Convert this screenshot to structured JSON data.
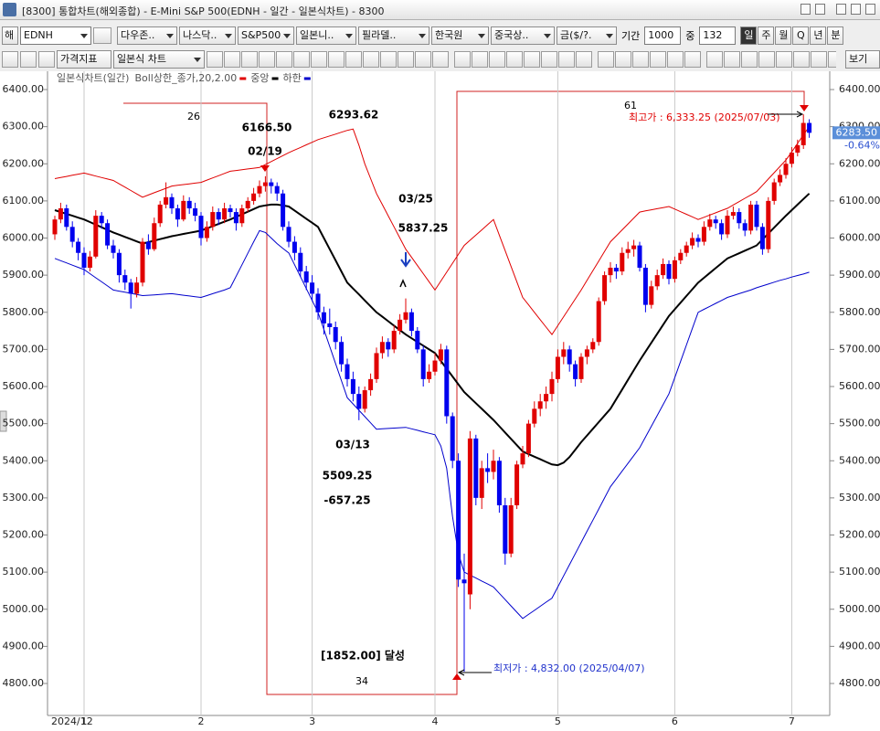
{
  "window": {
    "title": "[8300]  통합차트(해외종합) - E-Mini S&P 500(EDNH - 일간 - 일본식차트) - 8300"
  },
  "toolbar": {
    "code_prefix": "해",
    "code": "EDNH",
    "markets": [
      "다우존..",
      "나스닥..",
      "S&P500",
      "일본니..",
      "필라델..",
      "한국원",
      "중국상..",
      "금($/?."
    ],
    "period_label": "기간",
    "period": "1000",
    "count_label": "중",
    "count": "132",
    "intervals": [
      "일",
      "주",
      "월",
      "Q",
      "년",
      "분"
    ],
    "indicator_button": "가격지표",
    "chart_type": "일본식 차트",
    "view_button": "보기"
  },
  "chart_data": {
    "type": "candlestick",
    "legend_title": "일본식차트(일간)",
    "up_color": "#e00000",
    "down_color": "#0000ee",
    "grid": "x",
    "ylim": [
      4800,
      6400
    ],
    "yticks": [
      {
        "value": 6400,
        "label": "6400.00"
      },
      {
        "value": 6300,
        "label": "6300.00"
      },
      {
        "value": 6200,
        "label": "6200.00"
      },
      {
        "value": 6100,
        "label": "6100.00"
      },
      {
        "value": 6000,
        "label": "6000.00"
      },
      {
        "value": 5900,
        "label": "5900.00"
      },
      {
        "value": 5800,
        "label": "5800.00"
      },
      {
        "value": 5700,
        "label": "5700.00"
      },
      {
        "value": 5600,
        "label": "5600.00"
      },
      {
        "value": 5500,
        "label": "5500.00"
      },
      {
        "value": 5400,
        "label": "5400.00"
      },
      {
        "value": 5300,
        "label": "5300.00"
      },
      {
        "value": 5200,
        "label": "5200.00"
      },
      {
        "value": 5100,
        "label": "5100.00"
      },
      {
        "value": 5000,
        "label": "5000.00"
      },
      {
        "value": 4900,
        "label": "4900.00"
      },
      {
        "value": 4800,
        "label": "4800.00"
      }
    ],
    "categories": [
      "2024/12",
      null,
      null,
      null,
      null,
      "1",
      null,
      null,
      null,
      null,
      null,
      null,
      null,
      null,
      null,
      null,
      null,
      null,
      null,
      null,
      null,
      null,
      null,
      null,
      null,
      "2",
      null,
      null,
      null,
      null,
      null,
      null,
      null,
      null,
      null,
      null,
      null,
      null,
      null,
      null,
      null,
      null,
      null,
      null,
      "3",
      null,
      null,
      null,
      null,
      null,
      null,
      null,
      null,
      null,
      null,
      null,
      null,
      null,
      null,
      null,
      null,
      null,
      null,
      null,
      null,
      "4",
      null,
      null,
      null,
      null,
      null,
      null,
      null,
      null,
      null,
      null,
      null,
      null,
      null,
      null,
      null,
      null,
      null,
      null,
      null,
      null,
      "5",
      null,
      null,
      null,
      null,
      null,
      null,
      null,
      null,
      null,
      null,
      null,
      null,
      null,
      null,
      null,
      null,
      null,
      null,
      null,
      "6",
      null,
      null,
      null,
      null,
      null,
      null,
      null,
      null,
      null,
      null,
      null,
      null,
      null,
      null,
      null,
      null,
      null,
      null,
      null,
      "7",
      null,
      null,
      null
    ],
    "candles": [
      [
        6010,
        6060,
        5995,
        6050
      ],
      [
        6050,
        6095,
        6040,
        6080
      ],
      [
        6080,
        6090,
        6020,
        6030
      ],
      [
        6030,
        6045,
        5975,
        5990
      ],
      [
        5990,
        6000,
        5940,
        5960
      ],
      [
        5960,
        5975,
        5900,
        5920
      ],
      [
        5920,
        5965,
        5910,
        5950
      ],
      [
        5950,
        6075,
        5945,
        6060
      ],
      [
        6060,
        6070,
        6025,
        6040
      ],
      [
        6040,
        6050,
        5970,
        5980
      ],
      [
        5980,
        5995,
        5945,
        5960
      ],
      [
        5960,
        5970,
        5880,
        5900
      ],
      [
        5900,
        5915,
        5860,
        5880
      ],
      [
        5880,
        5890,
        5810,
        5850
      ],
      [
        5850,
        5895,
        5840,
        5880
      ],
      [
        5880,
        6000,
        5870,
        5990
      ],
      [
        5990,
        6010,
        5955,
        5970
      ],
      [
        5970,
        6055,
        5965,
        6040
      ],
      [
        6040,
        6100,
        6030,
        6090
      ],
      [
        6090,
        6150,
        6080,
        6110
      ],
      [
        6110,
        6120,
        6065,
        6080
      ],
      [
        6080,
        6090,
        6030,
        6050
      ],
      [
        6050,
        6115,
        6045,
        6100
      ],
      [
        6100,
        6110,
        6065,
        6080
      ],
      [
        6080,
        6095,
        6045,
        6060
      ],
      [
        6060,
        6070,
        5980,
        6000
      ],
      [
        6000,
        6045,
        5990,
        6030
      ],
      [
        6030,
        6085,
        6020,
        6070
      ],
      [
        6070,
        6080,
        6035,
        6050
      ],
      [
        6050,
        6095,
        6040,
        6080
      ],
      [
        6080,
        6090,
        6055,
        6070
      ],
      [
        6070,
        6080,
        6020,
        6040
      ],
      [
        6040,
        6090,
        6030,
        6080
      ],
      [
        6080,
        6110,
        6070,
        6100
      ],
      [
        6100,
        6135,
        6090,
        6120
      ],
      [
        6120,
        6155,
        6110,
        6140
      ],
      [
        6140,
        6166.5,
        6125,
        6150
      ],
      [
        6150,
        6160,
        6120,
        6140
      ],
      [
        6140,
        6150,
        6100,
        6120
      ],
      [
        6120,
        6130,
        6020,
        6030
      ],
      [
        6030,
        6045,
        5975,
        5990
      ],
      [
        5990,
        6005,
        5940,
        5960
      ],
      [
        5960,
        5975,
        5895,
        5910
      ],
      [
        5910,
        5925,
        5860,
        5880
      ],
      [
        5880,
        5900,
        5830,
        5850
      ],
      [
        5850,
        5865,
        5780,
        5800
      ],
      [
        5800,
        5815,
        5740,
        5770
      ],
      [
        5770,
        5810,
        5740,
        5760
      ],
      [
        5760,
        5775,
        5700,
        5720
      ],
      [
        5720,
        5735,
        5640,
        5660
      ],
      [
        5660,
        5675,
        5600,
        5620
      ],
      [
        5620,
        5640,
        5560,
        5580
      ],
      [
        5580,
        5600,
        5509.25,
        5540
      ],
      [
        5540,
        5600,
        5530,
        5590
      ],
      [
        5590,
        5635,
        5575,
        5620
      ],
      [
        5620,
        5705,
        5610,
        5690
      ],
      [
        5690,
        5735,
        5675,
        5720
      ],
      [
        5720,
        5730,
        5680,
        5700
      ],
      [
        5700,
        5765,
        5690,
        5750
      ],
      [
        5750,
        5795,
        5740,
        5780
      ],
      [
        5780,
        5837.25,
        5770,
        5800
      ],
      [
        5800,
        5810,
        5735,
        5750
      ],
      [
        5750,
        5760,
        5690,
        5700
      ],
      [
        5700,
        5710,
        5600,
        5620
      ],
      [
        5620,
        5660,
        5610,
        5640
      ],
      [
        5640,
        5690,
        5630,
        5670
      ],
      [
        5670,
        5715,
        5660,
        5700
      ],
      [
        5700,
        5710,
        5500,
        5520
      ],
      [
        5520,
        5530,
        5380,
        5400
      ],
      [
        5400,
        5420,
        5060,
        5080
      ],
      [
        5080,
        5150,
        4832,
        5070
      ],
      [
        5040,
        5480,
        5000,
        5460
      ],
      [
        5460,
        5470,
        5280,
        5300
      ],
      [
        5300,
        5400,
        5270,
        5380
      ],
      [
        5380,
        5420,
        5340,
        5370
      ],
      [
        5370,
        5430,
        5350,
        5400
      ],
      [
        5400,
        5410,
        5260,
        5280
      ],
      [
        5280,
        5300,
        5120,
        5150
      ],
      [
        5150,
        5300,
        5140,
        5280
      ],
      [
        5280,
        5400,
        5270,
        5390
      ],
      [
        5390,
        5440,
        5380,
        5420
      ],
      [
        5420,
        5510,
        5410,
        5500
      ],
      [
        5500,
        5560,
        5490,
        5540
      ],
      [
        5540,
        5580,
        5520,
        5560
      ],
      [
        5560,
        5600,
        5540,
        5580
      ],
      [
        5580,
        5640,
        5560,
        5620
      ],
      [
        5620,
        5700,
        5610,
        5680
      ],
      [
        5680,
        5720,
        5660,
        5700
      ],
      [
        5700,
        5710,
        5640,
        5660
      ],
      [
        5660,
        5670,
        5600,
        5620
      ],
      [
        5620,
        5690,
        5610,
        5680
      ],
      [
        5680,
        5710,
        5660,
        5700
      ],
      [
        5700,
        5730,
        5690,
        5720
      ],
      [
        5720,
        5840,
        5710,
        5830
      ],
      [
        5830,
        5910,
        5820,
        5900
      ],
      [
        5900,
        5935,
        5880,
        5920
      ],
      [
        5920,
        5930,
        5890,
        5910
      ],
      [
        5910,
        5975,
        5900,
        5960
      ],
      [
        5960,
        5990,
        5945,
        5970
      ],
      [
        5970,
        5995,
        5950,
        5980
      ],
      [
        5980,
        5990,
        5910,
        5920
      ],
      [
        5920,
        5930,
        5800,
        5820
      ],
      [
        5820,
        5885,
        5810,
        5870
      ],
      [
        5870,
        5915,
        5860,
        5900
      ],
      [
        5900,
        5945,
        5890,
        5930
      ],
      [
        5930,
        5940,
        5875,
        5890
      ],
      [
        5890,
        5950,
        5880,
        5940
      ],
      [
        5940,
        5970,
        5930,
        5960
      ],
      [
        5960,
        5990,
        5950,
        5980
      ],
      [
        5980,
        6015,
        5970,
        6000
      ],
      [
        6000,
        6010,
        5975,
        5990
      ],
      [
        5990,
        6045,
        5980,
        6030
      ],
      [
        6030,
        6065,
        6020,
        6050
      ],
      [
        6050,
        6060,
        6025,
        6040
      ],
      [
        6040,
        6050,
        5995,
        6010
      ],
      [
        6010,
        6075,
        6000,
        6060
      ],
      [
        6060,
        6085,
        6050,
        6070
      ],
      [
        6070,
        6080,
        6025,
        6040
      ],
      [
        6040,
        6050,
        6005,
        6020
      ],
      [
        6020,
        6100,
        6010,
        6090
      ],
      [
        6090,
        6100,
        6020,
        6030
      ],
      [
        6030,
        6040,
        5955,
        5970
      ],
      [
        5970,
        6110,
        5960,
        6100
      ],
      [
        6100,
        6160,
        6090,
        6150
      ],
      [
        6150,
        6185,
        6140,
        6170
      ],
      [
        6170,
        6215,
        6160,
        6200
      ],
      [
        6200,
        6245,
        6190,
        6230
      ],
      [
        6230,
        6265,
        6220,
        6250
      ],
      [
        6250,
        6333.25,
        6240,
        6310
      ],
      [
        6310,
        6320,
        6270,
        6283.5
      ]
    ],
    "series": [
      {
        "name": "Boll상한_종가,20,2.00",
        "color": "#e00000",
        "line_width": 1,
        "values": [
          6160,
          6163,
          6166,
          6169,
          6172,
          6175,
          6171,
          6167,
          6163,
          6159,
          6155,
          6146,
          6137,
          6128,
          6119,
          6110,
          6116,
          6122,
          6128,
          6134,
          6140,
          6142,
          6144,
          6146,
          6148,
          6150,
          6156,
          6162,
          6168,
          6174,
          6180,
          6182,
          6184,
          6186,
          6188,
          6190,
          6198,
          6206,
          6214,
          6222,
          6230,
          6237,
          6244,
          6251,
          6258,
          6265,
          6270,
          6275,
          6280,
          6285,
          6290,
          6293.62,
          6250,
          6200,
          6160,
          6120,
          6090,
          6060,
          6030,
          6000,
          5970,
          5948,
          5926,
          5904,
          5882,
          5860,
          5884,
          5908,
          5932,
          5956,
          5980,
          5994,
          6008,
          6022,
          6036,
          6050,
          6008,
          5966,
          5924,
          5882,
          5840,
          5820,
          5800,
          5780,
          5760,
          5740,
          5764,
          5788,
          5812,
          5836,
          5860,
          5886,
          5912,
          5938,
          5964,
          5990,
          6006,
          6022,
          6038,
          6054,
          6070,
          6073,
          6076,
          6079,
          6082,
          6085,
          6078,
          6071,
          6064,
          6057,
          6050,
          6056,
          6062,
          6068,
          6074,
          6080,
          6089,
          6098,
          6107,
          6116,
          6125,
          6142,
          6159,
          6176,
          6193,
          6210,
          6232,
          6255,
          6278,
          6300
        ]
      },
      {
        "name": "중앙",
        "color": "#000000",
        "line_width": 2,
        "values": [
          6075,
          6070,
          6065,
          6060,
          6055,
          6050,
          6043,
          6036,
          6029,
          6022,
          6015,
          6009,
          6003,
          5997,
          5991,
          5985,
          5989,
          5993,
          5997,
          6001,
          6005,
          6008,
          6011,
          6014,
          6017,
          6020,
          6026,
          6032,
          6038,
          6044,
          6050,
          6057,
          6064,
          6071,
          6078,
          6085,
          6088,
          6090,
          6090,
          6088,
          6085,
          6074,
          6063,
          6052,
          6041,
          6030,
          6000,
          5970,
          5940,
          5910,
          5880,
          5864,
          5848,
          5832,
          5816,
          5800,
          5788,
          5776,
          5764,
          5752,
          5740,
          5730,
          5720,
          5710,
          5700,
          5690,
          5669,
          5648,
          5627,
          5606,
          5585,
          5570,
          5555,
          5540,
          5525,
          5510,
          5493,
          5476,
          5459,
          5442,
          5425,
          5418,
          5411,
          5404,
          5397,
          5390,
          5388,
          5395,
          5410,
          5430,
          5450,
          5468,
          5486,
          5504,
          5522,
          5540,
          5566,
          5592,
          5618,
          5644,
          5670,
          5694,
          5718,
          5742,
          5766,
          5790,
          5808,
          5826,
          5844,
          5862,
          5880,
          5893,
          5906,
          5919,
          5932,
          5945,
          5952,
          5959,
          5966,
          5973,
          5980,
          5996,
          6012,
          6028,
          6044,
          6060,
          6075,
          6090,
          6105,
          6120
        ]
      },
      {
        "name": "하한",
        "color": "#0000cc",
        "line_width": 1,
        "values": [
          5945,
          5939,
          5933,
          5927,
          5921,
          5915,
          5904,
          5893,
          5882,
          5871,
          5860,
          5857,
          5854,
          5851,
          5848,
          5845,
          5846,
          5847,
          5848,
          5849,
          5850,
          5848,
          5846,
          5844,
          5842,
          5840,
          5845,
          5850,
          5855,
          5860,
          5866,
          5897,
          5928,
          5959,
          5990,
          6020,
          6015,
          6000,
          5985,
          5972,
          5960,
          5928,
          5896,
          5864,
          5832,
          5800,
          5754,
          5708,
          5662,
          5616,
          5570,
          5553,
          5536,
          5519,
          5502,
          5485,
          5486,
          5487,
          5488,
          5489,
          5490,
          5486,
          5482,
          5478,
          5474,
          5470,
          5440,
          5380,
          5250,
          5150,
          5100,
          5092,
          5084,
          5076,
          5068,
          5060,
          5043,
          5026,
          5009,
          4992,
          4975,
          4986,
          4997,
          5008,
          5019,
          5030,
          5060,
          5090,
          5120,
          5150,
          5180,
          5210,
          5240,
          5270,
          5300,
          5330,
          5351,
          5372,
          5393,
          5414,
          5435,
          5464,
          5493,
          5522,
          5551,
          5580,
          5624,
          5668,
          5712,
          5756,
          5800,
          5808,
          5816,
          5824,
          5832,
          5840,
          5845,
          5850,
          5855,
          5860,
          5866,
          5871,
          5876,
          5881,
          5886,
          5890,
          5895,
          5899,
          5903,
          5908
        ]
      }
    ],
    "last_label": "6283.50",
    "change": "-0.64%",
    "annotations": [
      "26",
      "6166.50",
      "02/19",
      "6293.62",
      "03/25",
      "5837.25",
      "03/13",
      "5509.25",
      "-657.25",
      "[1852.00] 달성",
      "34",
      "61",
      "최고가 : 6,333.25 (2025/07/03)",
      "최저가 : 4,832.00 (2025/04/07)"
    ]
  }
}
